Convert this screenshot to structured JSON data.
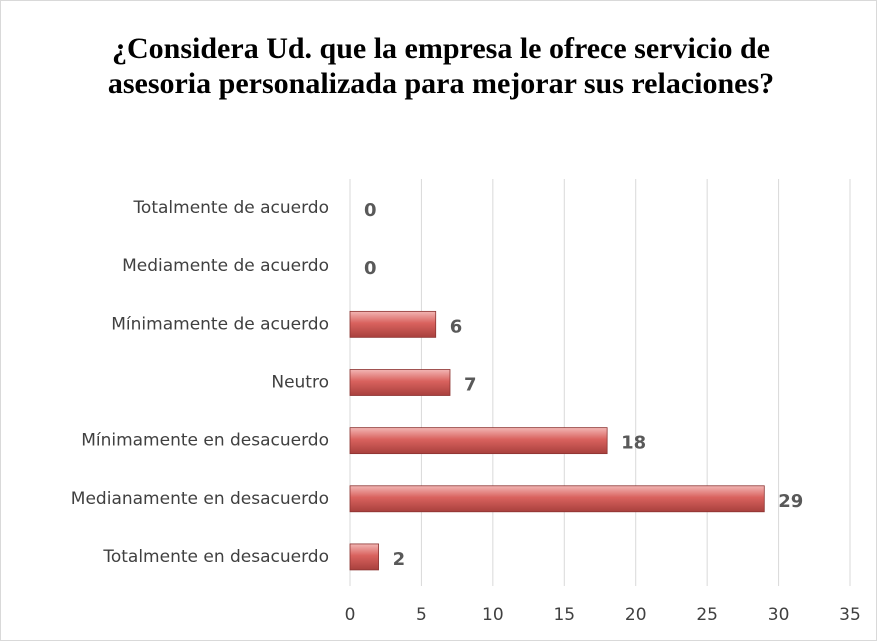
{
  "chart_data": {
    "type": "bar",
    "orientation": "horizontal",
    "title": "¿Considera Ud. que la empresa le ofrece servicio de asesoria personalizada para mejorar sus relaciones?",
    "categories": [
      "Totalmente de acuerdo",
      "Mediamente de acuerdo",
      "Mínimamente de acuerdo",
      "Neutro",
      "Mínimamente en desacuerdo",
      "Medianamente en desacuerdo",
      "Totalmente en desacuerdo"
    ],
    "values": [
      0,
      0,
      6,
      7,
      18,
      29,
      2
    ],
    "color": "#c0504d",
    "xlim": [
      0,
      35
    ],
    "xticks": [
      0,
      5,
      10,
      15,
      20,
      25,
      30,
      35
    ],
    "grid": true
  }
}
